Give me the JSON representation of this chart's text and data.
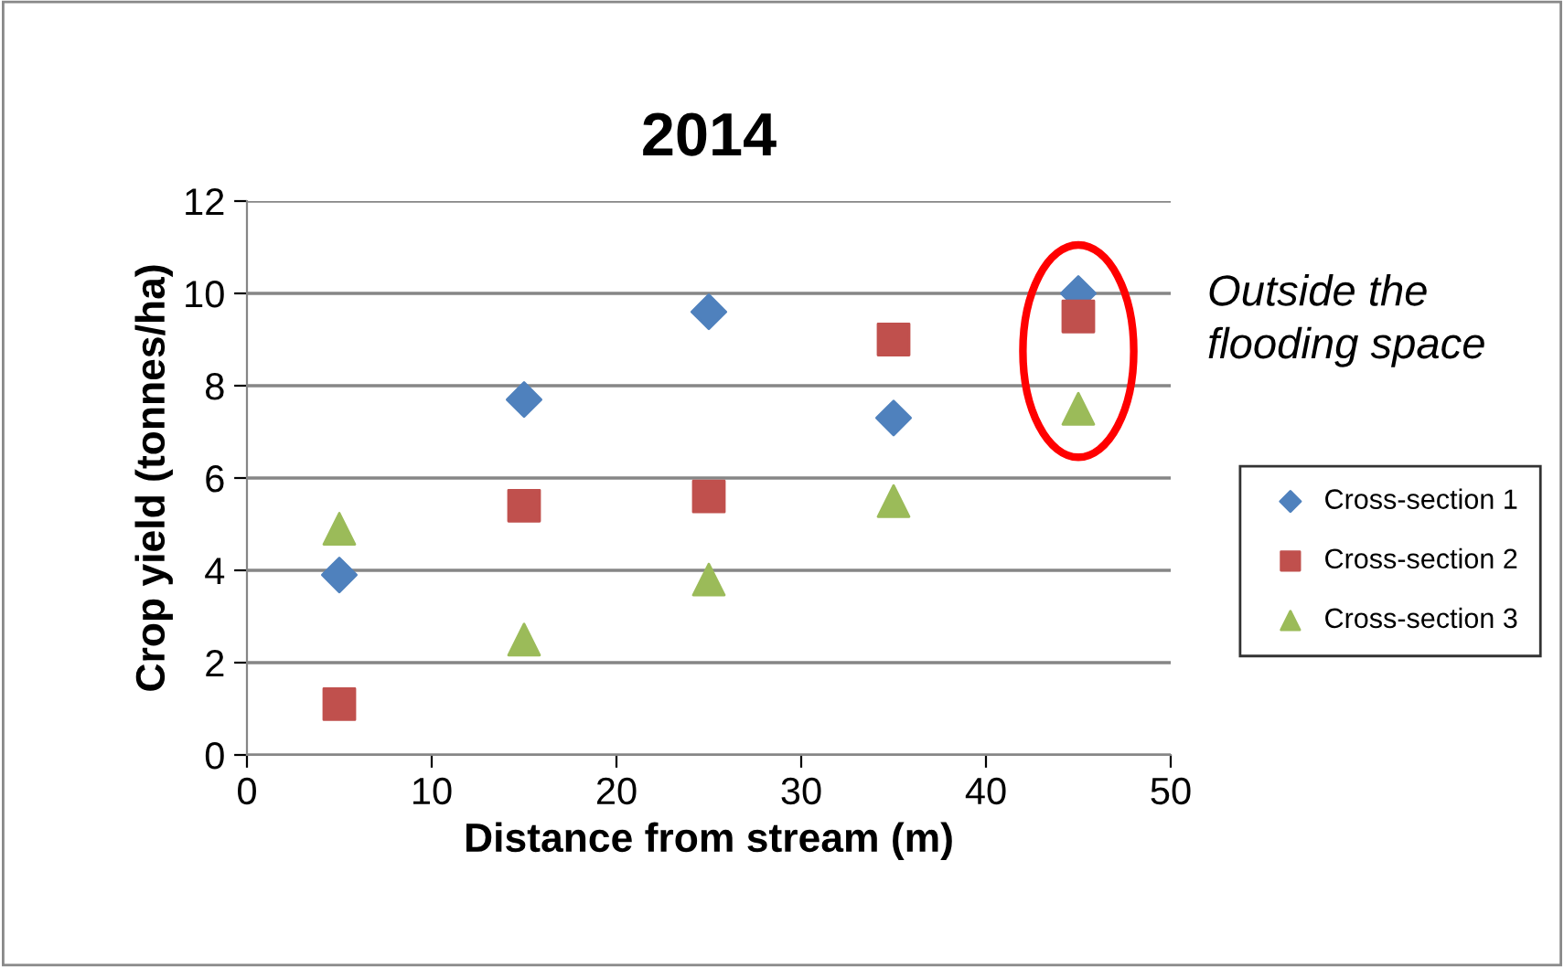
{
  "chart_data": {
    "type": "scatter",
    "title": "2014",
    "xlabel": "Distance from stream (m)",
    "ylabel": "Crop yield (tonnes/ha)",
    "xlim": [
      0,
      50
    ],
    "xticks": [
      0,
      10,
      20,
      30,
      40,
      50
    ],
    "ylim": [
      0,
      12
    ],
    "yticks": [
      0,
      2,
      4,
      6,
      8,
      10,
      12
    ],
    "grid": "y",
    "legend": "right",
    "x": [
      5,
      15,
      25,
      35,
      45
    ],
    "series": [
      {
        "name": "Cross-section 1",
        "color": "#4f81bd",
        "marker": "diamond",
        "values": [
          3.9,
          7.7,
          9.6,
          7.3,
          10.0
        ]
      },
      {
        "name": "Cross-section 2",
        "color": "#c0504d",
        "marker": "square",
        "values": [
          1.1,
          5.4,
          5.6,
          9.0,
          9.5
        ]
      },
      {
        "name": "Cross-section 3",
        "color": "#9bbb59",
        "marker": "triangle",
        "values": [
          4.9,
          2.5,
          3.8,
          5.5,
          7.5
        ]
      }
    ],
    "annotations": [
      "Outside the flooding space"
    ]
  }
}
